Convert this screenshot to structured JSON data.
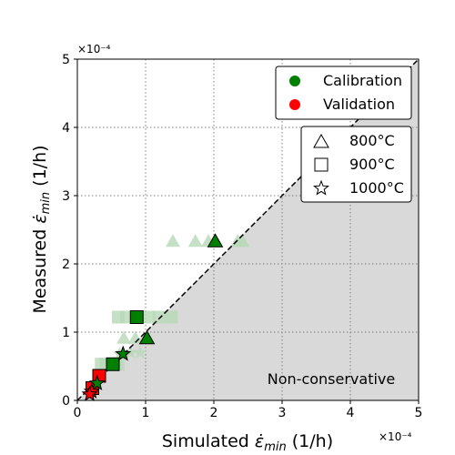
{
  "chart_data": {
    "type": "scatter",
    "title": "",
    "xlabel_main": "Simulated ",
    "xlabel_sym": "ε̇",
    "xlabel_sub": "min",
    "xlabel_unit": " (1/h)",
    "ylabel_main": "Measured ",
    "ylabel_sym": "ε̇",
    "ylabel_sub": "min",
    "ylabel_unit": " (1/h)",
    "x_multiplier": "×10⁻⁴",
    "y_multiplier": "×10⁻⁴",
    "xlim": [
      0,
      5
    ],
    "ylim": [
      0,
      5
    ],
    "xticks": [
      "0",
      "1",
      "2",
      "3",
      "4",
      "5"
    ],
    "yticks": [
      "0",
      "1",
      "2",
      "3",
      "4",
      "5"
    ],
    "grid": true,
    "region_label": "Non-conservative",
    "legend_color": {
      "placement": "top-right",
      "entries": [
        {
          "label": "Calibration",
          "color": "#008000"
        },
        {
          "label": "Validation",
          "color": "#ff0000"
        }
      ]
    },
    "legend_marker": {
      "placement": "upper-right, below color legend",
      "entries": [
        {
          "label": "800°C",
          "marker": "triangle"
        },
        {
          "label": "900°C",
          "marker": "square"
        },
        {
          "label": "1000°C",
          "marker": "star"
        }
      ]
    },
    "points": [
      {
        "x": 2.02,
        "y": 2.33,
        "marker": "triangle",
        "group": "calibration",
        "temp": "800°C"
      },
      {
        "x": 1.02,
        "y": 0.91,
        "marker": "triangle",
        "group": "calibration",
        "temp": "800°C"
      },
      {
        "x": 0.87,
        "y": 1.22,
        "marker": "square",
        "group": "calibration",
        "temp": "900°C"
      },
      {
        "x": 0.52,
        "y": 0.53,
        "marker": "square",
        "group": "calibration",
        "temp": "900°C"
      },
      {
        "x": 0.67,
        "y": 0.68,
        "marker": "star",
        "group": "calibration",
        "temp": "1000°C"
      },
      {
        "x": 0.32,
        "y": 0.36,
        "marker": "square",
        "group": "validation",
        "temp": "900°C"
      },
      {
        "x": 0.22,
        "y": 0.18,
        "marker": "square",
        "group": "validation",
        "temp": "900°C"
      },
      {
        "x": 0.29,
        "y": 0.25,
        "marker": "star",
        "group": "calibration",
        "temp": "1000°C"
      },
      {
        "x": 0.21,
        "y": 0.13,
        "marker": "star",
        "group": "validation",
        "temp": "1000°C"
      },
      {
        "x": 0.18,
        "y": 0.09,
        "marker": "star",
        "group": "validation",
        "temp": "1000°C"
      }
    ],
    "faded_points": [
      {
        "x": 1.4,
        "y": 2.33,
        "marker": "triangle"
      },
      {
        "x": 1.73,
        "y": 2.33,
        "marker": "triangle"
      },
      {
        "x": 1.92,
        "y": 2.33,
        "marker": "triangle"
      },
      {
        "x": 2.35,
        "y": 2.33,
        "marker": "triangle"
      },
      {
        "x": 2.42,
        "y": 2.33,
        "marker": "triangle"
      },
      {
        "x": 0.68,
        "y": 0.91,
        "marker": "triangle"
      },
      {
        "x": 0.85,
        "y": 0.91,
        "marker": "triangle"
      },
      {
        "x": 0.6,
        "y": 1.22,
        "marker": "square"
      },
      {
        "x": 0.72,
        "y": 1.22,
        "marker": "square"
      },
      {
        "x": 1.05,
        "y": 1.22,
        "marker": "square"
      },
      {
        "x": 1.2,
        "y": 1.22,
        "marker": "square"
      },
      {
        "x": 1.38,
        "y": 1.22,
        "marker": "square"
      },
      {
        "x": 0.35,
        "y": 0.53,
        "marker": "square"
      },
      {
        "x": 0.42,
        "y": 0.53,
        "marker": "square"
      },
      {
        "x": 0.6,
        "y": 0.53,
        "marker": "square"
      },
      {
        "x": 0.78,
        "y": 0.7,
        "marker": "star"
      },
      {
        "x": 0.92,
        "y": 0.7,
        "marker": "star"
      },
      {
        "x": 0.62,
        "y": 0.68,
        "marker": "star"
      }
    ],
    "colors": {
      "calibration": "#008000",
      "validation": "#ff0000",
      "faded": "#b8d8b8",
      "region": "#d9d9d9",
      "grid": "#808080"
    }
  }
}
